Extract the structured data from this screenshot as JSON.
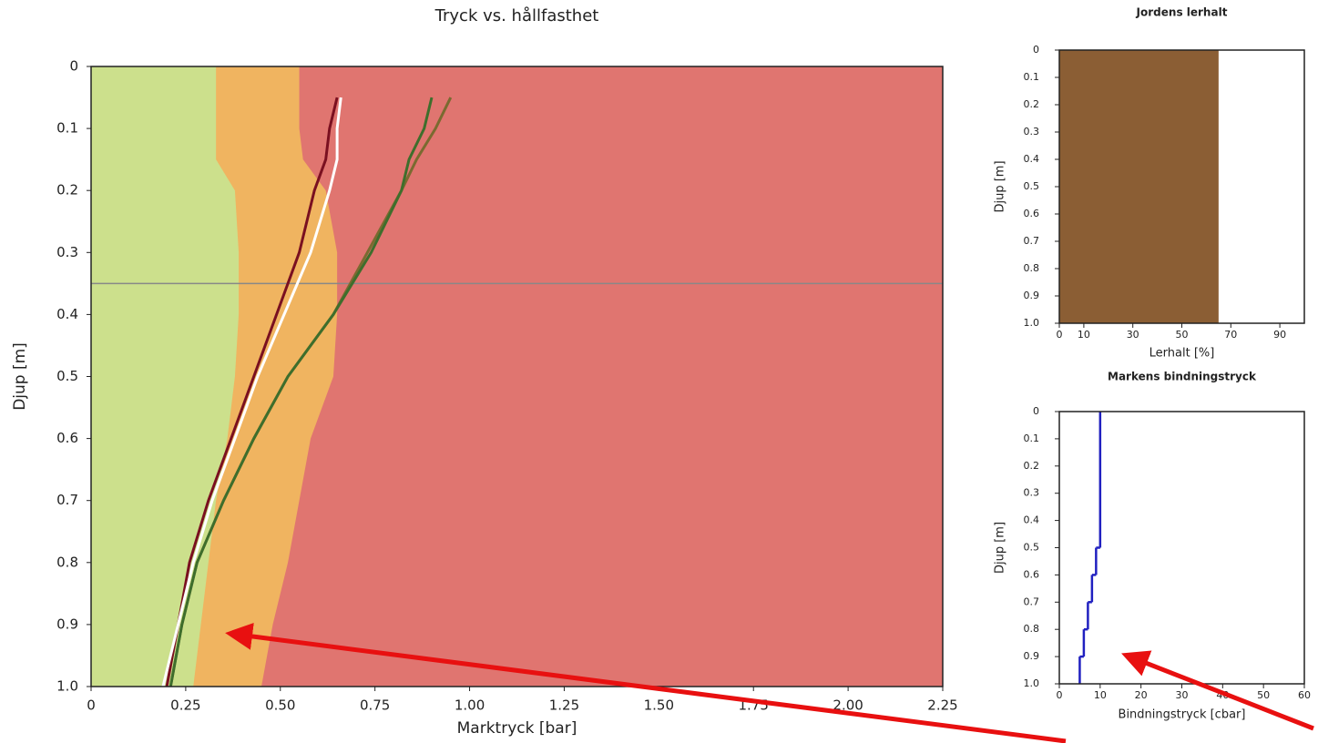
{
  "chart_data": [
    {
      "type": "depth_profile",
      "title": "Tryck vs. hållfasthet",
      "x_label": "Marktryck [bar]",
      "y_label": "Djup [m]",
      "xlim": [
        0,
        2.25
      ],
      "xticks": [
        0,
        0.25,
        {
          "value": 0.5,
          "label": "0.50"
        },
        0.75,
        {
          "value": 1,
          "label": "1.00"
        },
        1.25,
        {
          "value": 1.5,
          "label": "1.50"
        },
        1.75,
        {
          "value": 2,
          "label": "2.00"
        },
        2.25
      ],
      "ylim": [
        0,
        1
      ],
      "y_inverted": true,
      "yticks": [
        0,
        0.1,
        0.2,
        0.3,
        0.4,
        0.5,
        0.6,
        0.7,
        0.8,
        0.9,
        {
          "value": 1,
          "label": "1.0"
        }
      ],
      "background_color": "#e07570",
      "hline": 0.35,
      "depths": [
        0,
        0.05,
        0.1,
        0.15,
        0.2,
        0.3,
        0.4,
        0.5,
        0.6,
        0.7,
        0.8,
        0.9,
        1
      ],
      "series": [
        {
          "fill": true,
          "color": "#f0b460",
          "values": [
            0.55,
            0.55,
            0.55,
            0.56,
            0.62,
            0.65,
            0.65,
            0.64,
            0.58,
            0.55,
            0.52,
            0.48,
            0.45
          ]
        },
        {
          "fill": true,
          "color": "#cce08c",
          "values": [
            0.33,
            0.33,
            0.33,
            0.33,
            0.38,
            0.39,
            0.39,
            0.38,
            0.36,
            0.33,
            0.31,
            0.29,
            0.27
          ]
        },
        {
          "color": "#7a1020",
          "values": [
            null,
            0.65,
            0.63,
            0.62,
            0.59,
            0.55,
            0.49,
            0.43,
            0.37,
            0.31,
            0.26,
            0.23,
            0.2
          ]
        },
        {
          "color": "#ffffff",
          "values": [
            null,
            0.66,
            0.65,
            0.65,
            0.63,
            0.58,
            0.51,
            0.44,
            0.38,
            0.32,
            0.27,
            0.23,
            0.19
          ]
        },
        {
          "color": "#7a6a30",
          "values": [
            null,
            0.95,
            0.91,
            0.86,
            0.82,
            0.73,
            0.64,
            0.52,
            0.43,
            0.35,
            0.28,
            0.24,
            0.21
          ]
        },
        {
          "color": "#3e6e2c",
          "values": [
            null,
            0.9,
            0.88,
            0.84,
            0.82,
            0.74,
            0.64,
            0.52,
            0.43,
            0.35,
            0.28,
            0.24,
            0.21
          ]
        }
      ]
    },
    {
      "type": "hbar",
      "title": "Jordens lerhalt",
      "x_label": "Lerhalt [%]",
      "y_label": "Djup [m]",
      "xlim": [
        0,
        100
      ],
      "xticks": [
        0,
        10,
        30,
        50,
        70,
        90
      ],
      "ylim": [
        0,
        1
      ],
      "y_inverted": true,
      "yticks": [
        0,
        0.1,
        0.2,
        0.3,
        0.4,
        0.5,
        0.6,
        0.7,
        0.8,
        0.9,
        {
          "value": 1,
          "label": "1.0"
        }
      ],
      "color": "#8b5e34",
      "values": [
        65
      ]
    },
    {
      "type": "step",
      "title": "Markens bindningstryck",
      "x_label": "Bindningstryck [cbar]",
      "y_label": "Djup [m]",
      "xlim": [
        0,
        60
      ],
      "xticks": [
        0,
        10,
        20,
        30,
        40,
        50,
        60
      ],
      "ylim": [
        0,
        1
      ],
      "y_inverted": true,
      "yticks": [
        0,
        0.1,
        0.2,
        0.3,
        0.4,
        0.5,
        0.6,
        0.7,
        0.8,
        0.9,
        {
          "value": 1,
          "label": "1.0"
        }
      ],
      "color": "#2020c0",
      "depth_edges": [
        0,
        0.5,
        0.6,
        0.7,
        0.8,
        0.9,
        1
      ],
      "values": [
        10,
        9,
        8,
        7,
        6,
        5
      ]
    }
  ]
}
